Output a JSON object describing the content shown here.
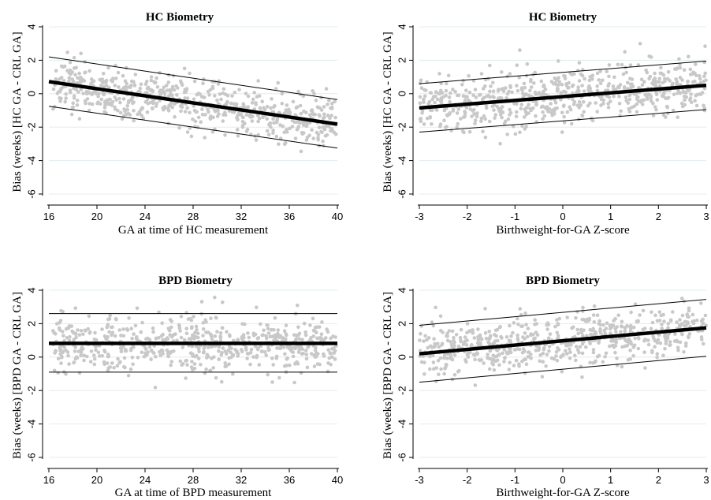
{
  "chart_data": [
    {
      "type": "scatter",
      "title": "HC Biometry",
      "xlabel": "GA at time of HC measurement",
      "ylabel": "Bias (weeks) [HC GA - CRL GA]",
      "xlim": [
        16,
        40
      ],
      "ylim": [
        -6,
        4
      ],
      "xticks": [
        16,
        20,
        24,
        28,
        32,
        36,
        40
      ],
      "yticks": [
        4,
        2,
        0,
        -2,
        -4,
        -6
      ],
      "grid": true,
      "point_color": "#c8c8c8",
      "fit_color": "#000000",
      "cloud": {
        "x_range": [
          16.3,
          39.9
        ],
        "n": 650,
        "center_at_xmin": 0.6,
        "center_at_xmax": -1.8,
        "spread": 0.75
      },
      "series": [
        {
          "role": "fit",
          "x": [
            16,
            40
          ],
          "y": [
            0.72,
            -1.82
          ]
        },
        {
          "role": "upper_limit",
          "x": [
            16,
            40
          ],
          "y": [
            2.2,
            -0.35
          ]
        },
        {
          "role": "lower_limit",
          "x": [
            16,
            40
          ],
          "y": [
            -0.75,
            -3.25
          ]
        }
      ]
    },
    {
      "type": "scatter",
      "title": "HC Biometry",
      "xlabel": "Birthweight-for-GA Z-score",
      "ylabel": "Bias (weeks) [HC GA - CRL GA]",
      "xlim": [
        -3,
        3
      ],
      "ylim": [
        -6,
        4
      ],
      "xticks": [
        -3,
        -2,
        -1,
        0,
        1,
        2,
        3
      ],
      "yticks": [
        4,
        2,
        0,
        -2,
        -4,
        -6
      ],
      "grid": true,
      "point_color": "#c8c8c8",
      "fit_color": "#000000",
      "cloud": {
        "x_range": [
          -3.0,
          3.0
        ],
        "n": 650,
        "center_at_xmin": -0.8,
        "center_at_xmax": 0.5,
        "spread": 0.8
      },
      "series": [
        {
          "role": "fit",
          "x": [
            -3,
            3
          ],
          "y": [
            -0.85,
            0.5
          ]
        },
        {
          "role": "upper_limit",
          "x": [
            -3,
            3
          ],
          "y": [
            0.6,
            1.95
          ]
        },
        {
          "role": "lower_limit",
          "x": [
            -3,
            3
          ],
          "y": [
            -2.3,
            -0.95
          ]
        }
      ]
    },
    {
      "type": "scatter",
      "title": "BPD Biometry",
      "xlabel": "GA at time of BPD measurement",
      "ylabel": "Bias (weeks) [BPD GA - CRL GA]",
      "xlim": [
        16,
        40
      ],
      "ylim": [
        -6,
        4
      ],
      "xticks": [
        16,
        20,
        24,
        28,
        32,
        36,
        40
      ],
      "yticks": [
        4,
        2,
        0,
        -2,
        -4,
        -6
      ],
      "grid": true,
      "point_color": "#c8c8c8",
      "fit_color": "#000000",
      "cloud": {
        "x_range": [
          16.3,
          39.9
        ],
        "n": 650,
        "center_at_xmin": 0.8,
        "center_at_xmax": 0.8,
        "spread": 0.8
      },
      "series": [
        {
          "role": "fit",
          "x": [
            16,
            40
          ],
          "y": [
            0.82,
            0.82
          ]
        },
        {
          "role": "upper_limit",
          "x": [
            16,
            40
          ],
          "y": [
            2.6,
            2.6
          ]
        },
        {
          "role": "lower_limit",
          "x": [
            16,
            40
          ],
          "y": [
            -0.9,
            -0.9
          ]
        }
      ]
    },
    {
      "type": "scatter",
      "title": "BPD Biometry",
      "xlabel": "Birthweight-for-GA Z-score",
      "ylabel": "Bias (weeks) [BPD GA - CRL GA]",
      "xlim": [
        -3,
        3
      ],
      "ylim": [
        -6,
        4
      ],
      "xticks": [
        -3,
        -2,
        -1,
        0,
        1,
        2,
        3
      ],
      "yticks": [
        4,
        2,
        0,
        -2,
        -4,
        -6
      ],
      "grid": true,
      "point_color": "#c8c8c8",
      "fit_color": "#000000",
      "cloud": {
        "x_range": [
          -3.0,
          3.0
        ],
        "n": 650,
        "center_at_xmin": 0.2,
        "center_at_xmax": 1.75,
        "spread": 0.8
      },
      "series": [
        {
          "role": "fit",
          "x": [
            -3,
            3
          ],
          "y": [
            0.2,
            1.75
          ]
        },
        {
          "role": "upper_limit",
          "x": [
            -3,
            3
          ],
          "y": [
            1.9,
            3.45
          ]
        },
        {
          "role": "lower_limit",
          "x": [
            -3,
            3
          ],
          "y": [
            -1.5,
            0.05
          ]
        }
      ]
    }
  ]
}
